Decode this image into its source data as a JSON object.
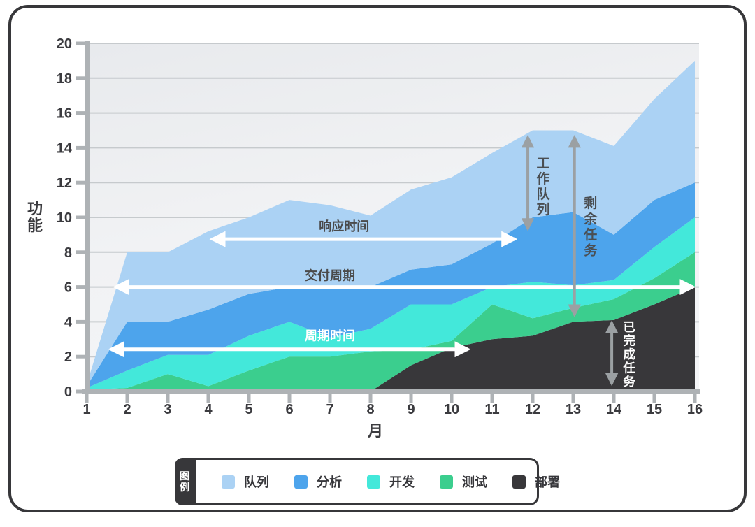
{
  "frame": {
    "border_color": "#37373a",
    "background": "#ffffff"
  },
  "chart_data": {
    "type": "area",
    "stacked": true,
    "xlabel": "月",
    "ylabel": "功能",
    "x": [
      1,
      2,
      3,
      4,
      5,
      6,
      7,
      8,
      9,
      10,
      11,
      12,
      13,
      14,
      15,
      16
    ],
    "xlim": [
      1,
      16
    ],
    "ylim": [
      0,
      20
    ],
    "ytick_step": 2,
    "grid": true,
    "legend_position": "bottom",
    "plot_colors": {
      "bg_top": "#e8eaed",
      "bg_bottom": "#f4f5f7",
      "gridline": "#c6cacd",
      "axis_bar": "#aeb2b5"
    },
    "series": [
      {
        "name": "部署",
        "color": "#38373a",
        "values": [
          0,
          0,
          0,
          0,
          0,
          0,
          0,
          0,
          1.5,
          2.5,
          3,
          3.2,
          4,
          4.1,
          5,
          6
        ]
      },
      {
        "name": "测试",
        "color": "#3bce8e",
        "values": [
          0.1,
          0.2,
          1,
          0.3,
          1.2,
          2,
          2,
          2.3,
          0.9,
          0.4,
          2,
          1,
          0.8,
          1.2,
          1.5,
          2
        ]
      },
      {
        "name": "开发",
        "color": "#43e8da",
        "values": [
          0.1,
          1,
          1.1,
          1.8,
          2,
          2,
          1.1,
          1.3,
          2.6,
          2.1,
          1,
          2.1,
          1.3,
          1.1,
          1.8,
          2
        ]
      },
      {
        "name": "分析",
        "color": "#4da4ec",
        "values": [
          0.1,
          2.8,
          1.9,
          2.6,
          2.4,
          2,
          2.9,
          2.4,
          2,
          2.3,
          2.5,
          3.7,
          4.2,
          2.6,
          2.7,
          2
        ]
      },
      {
        "name": "队列",
        "color": "#abd2f4",
        "values": [
          0.1,
          4,
          4,
          4.5,
          4.4,
          5,
          4.7,
          4.1,
          4.6,
          5,
          5.2,
          5,
          4.7,
          5.1,
          5.8,
          7
        ]
      }
    ],
    "annotations": {
      "horizontal_arrows": [
        {
          "label": "响应时间",
          "y": 8.75,
          "x1": 4.1,
          "x2": 11.55,
          "label_x": 7.35,
          "label_dy": -12,
          "color": "#ffffff",
          "label_color": "#4a4a4a"
        },
        {
          "label": "交付周期",
          "y": 6.0,
          "x1": 1.72,
          "x2": 15.95,
          "label_x": 7.0,
          "label_dy": -10,
          "color": "#ffffff",
          "label_color": "#4a4a4a"
        },
        {
          "label": "周期时间",
          "y": 2.42,
          "x1": 1.6,
          "x2": 10.4,
          "label_x": 7.0,
          "label_dy": -13,
          "color": "#ffffff",
          "label_color": "#ffffff"
        }
      ],
      "vertical_arrows": [
        {
          "label": "工作队列",
          "x": 11.88,
          "y1": 9.35,
          "y2": 14.6,
          "label_dx": 22,
          "label_top_v": 12.85,
          "char_step": 22,
          "font": 19,
          "color": "#9ba0a3",
          "label_color": "#4a4e52"
        },
        {
          "label": "剩余任务",
          "x": 13.03,
          "y1": 4.4,
          "y2": 14.6,
          "label_dx": 23,
          "label_top_v": 10.56,
          "char_step": 22.5,
          "font": 19,
          "color": "#9ba0a3",
          "label_color": "#4a4e52"
        },
        {
          "label": "已完成任务",
          "x": 13.95,
          "y1": 0.45,
          "y2": 3.95,
          "label_dx": 25,
          "label_top_v": 3.45,
          "char_step": 19.5,
          "font": 17.5,
          "color": "#9ba0a3",
          "label_color": "#ffffff"
        }
      ]
    }
  },
  "legend": {
    "tab_label": "图例",
    "tab_bg": "#37373a",
    "items": [
      {
        "label": "队列",
        "color": "#abd2f4"
      },
      {
        "label": "分析",
        "color": "#4da4ec"
      },
      {
        "label": "开发",
        "color": "#43e8da"
      },
      {
        "label": "测试",
        "color": "#3bce8e"
      },
      {
        "label": "部署",
        "color": "#38373a"
      }
    ]
  }
}
